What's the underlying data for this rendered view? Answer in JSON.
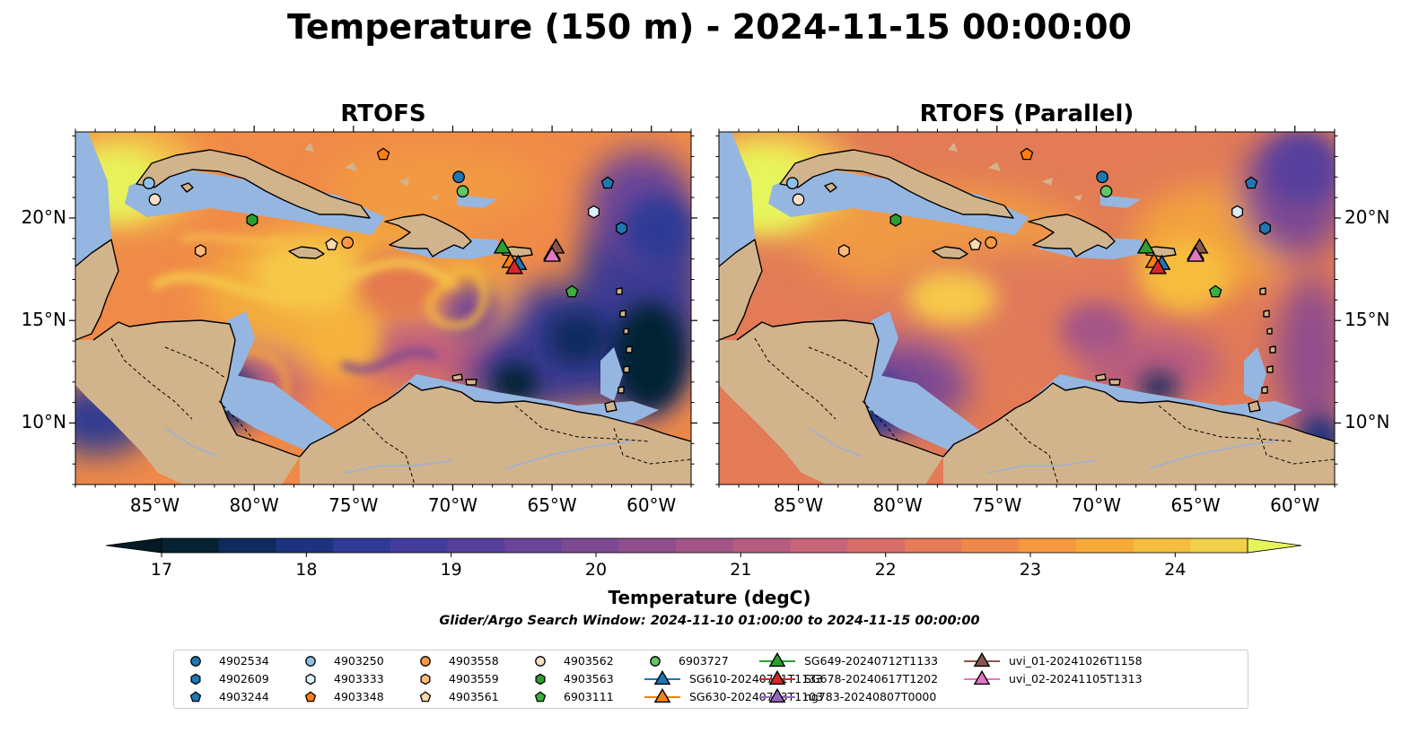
{
  "figure": {
    "title": "Temperature (150 m) - 2024-11-15 00:00:00",
    "search_window": "Glider/Argo Search Window: 2024-11-10 01:00:00 to 2024-11-15 00:00:00"
  },
  "panels": [
    {
      "title": "RTOFS"
    },
    {
      "title": "RTOFS (Parallel)"
    }
  ],
  "map_extent": {
    "lon": [
      -89,
      -58
    ],
    "lat": [
      7,
      24.2
    ]
  },
  "lon_ticks": [
    "85°W",
    "80°W",
    "75°W",
    "70°W",
    "65°W",
    "60°W"
  ],
  "lon_tick_values": [
    -85,
    -80,
    -75,
    -70,
    -65,
    -60
  ],
  "lat_ticks": [
    "20°N",
    "15°N",
    "10°N"
  ],
  "lat_tick_values": [
    20,
    15,
    10
  ],
  "colorbar": {
    "label": "Temperature (degC)",
    "range": [
      17,
      24.5
    ],
    "step": 0.5,
    "tick_labels": [
      "17",
      "18",
      "19",
      "20",
      "21",
      "22",
      "23",
      "24"
    ],
    "tick_values": [
      17,
      18,
      19,
      20,
      21,
      22,
      23,
      24
    ],
    "colors": [
      "#052233",
      "#0d2b5e",
      "#1d3380",
      "#2e3a95",
      "#423c9c",
      "#563f9d",
      "#6a439a",
      "#7d4993",
      "#914e8c",
      "#a45587",
      "#b75c80",
      "#ca6478",
      "#d96e68",
      "#e77a58",
      "#f0884a",
      "#f6993e",
      "#f8aa39",
      "#f6bd3e",
      "#f2d04a"
    ],
    "under_color": "#031a26",
    "over_color": "#e6f55c"
  },
  "colors": {
    "land": "#d2b48c",
    "shelf": "#95b6e0",
    "coast": "#000000",
    "river": "#9ab0d8"
  },
  "platforms": [
    {
      "id": "4902534",
      "kind": "argo",
      "marker": "circle",
      "color": "#1f77b4",
      "lon": -69.7,
      "lat": 22.0
    },
    {
      "id": "4902609",
      "kind": "argo",
      "marker": "hexagon",
      "color": "#1f77b4",
      "lon": -61.5,
      "lat": 19.5
    },
    {
      "id": "4903244",
      "kind": "argo",
      "marker": "pentagon",
      "color": "#1f77b4",
      "lon": -62.2,
      "lat": 21.7
    },
    {
      "id": "4903250",
      "kind": "argo",
      "marker": "circle",
      "color": "#8ec1e8",
      "lon": -85.3,
      "lat": 21.7
    },
    {
      "id": "4903333",
      "kind": "argo",
      "marker": "hexagon",
      "color": "#ddeefa",
      "lon": -62.9,
      "lat": 20.3
    },
    {
      "id": "4903348",
      "kind": "argo",
      "marker": "pentagon",
      "color": "#ff7f0e",
      "lon": -73.5,
      "lat": 23.1
    },
    {
      "id": "4903558",
      "kind": "argo",
      "marker": "circle",
      "color": "#fd9843",
      "lon": -75.3,
      "lat": 18.8
    },
    {
      "id": "4903559",
      "kind": "argo",
      "marker": "hexagon",
      "color": "#fdb97a",
      "lon": -82.7,
      "lat": 18.4
    },
    {
      "id": "4903561",
      "kind": "argo",
      "marker": "pentagon",
      "color": "#fdd9b0",
      "lon": -76.1,
      "lat": 18.7
    },
    {
      "id": "4903562",
      "kind": "argo",
      "marker": "circle",
      "color": "#fde0c5",
      "lon": -85.0,
      "lat": 20.9
    },
    {
      "id": "4903563",
      "kind": "argo",
      "marker": "hexagon",
      "color": "#2ca02c",
      "lon": -80.1,
      "lat": 19.9
    },
    {
      "id": "6903111",
      "kind": "argo",
      "marker": "pentagon",
      "color": "#3cb03c",
      "lon": -64.0,
      "lat": 16.4
    },
    {
      "id": "6903727",
      "kind": "argo",
      "marker": "circle",
      "color": "#62c462",
      "lon": -69.5,
      "lat": 21.3
    },
    {
      "id": "SG610-20240711T1133",
      "kind": "glider",
      "marker": "triangle",
      "color": "#1f77b4",
      "lon": -66.7,
      "lat": 17.8
    },
    {
      "id": "SG630-20240713T1103",
      "kind": "glider",
      "marker": "triangle",
      "color": "#ff7f0e",
      "lon": -67.1,
      "lat": 17.9
    },
    {
      "id": "SG649-20240712T1133",
      "kind": "glider",
      "marker": "triangle",
      "color": "#2ca02c",
      "lon": -67.5,
      "lat": 18.6
    },
    {
      "id": "SG678-20240617T1202",
      "kind": "glider",
      "marker": "triangle",
      "color": "#d62728",
      "lon": -66.9,
      "lat": 17.6
    },
    {
      "id": "ng783-20240807T0000",
      "kind": "glider",
      "marker": "triangle",
      "color": "#9467bd",
      "lon": -65.0,
      "lat": 18.3
    },
    {
      "id": "uvi_01-20241026T1158",
      "kind": "glider",
      "marker": "triangle",
      "color": "#8c564b",
      "lon": -64.8,
      "lat": 18.6
    },
    {
      "id": "uvi_02-20241105T1313",
      "kind": "glider",
      "marker": "triangle",
      "color": "#e377c2",
      "lon": -65.0,
      "lat": 18.2
    }
  ]
}
